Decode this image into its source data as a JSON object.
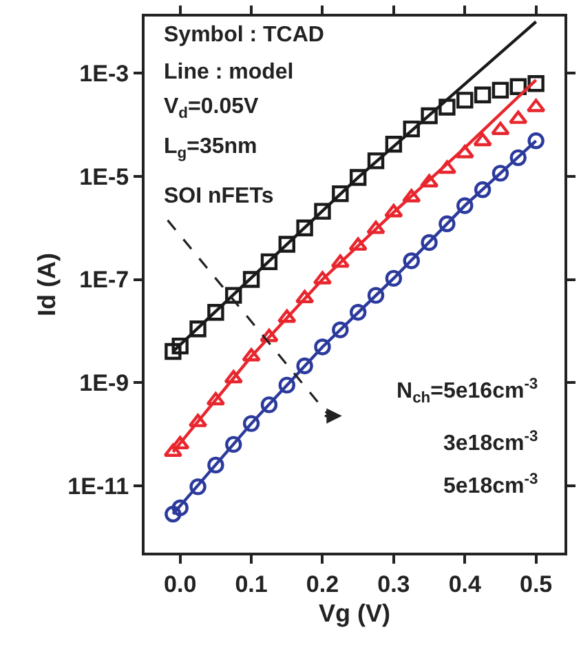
{
  "chart_data": {
    "type": "scatter",
    "xlabel": "Vg (V)",
    "ylabel": "Id (A)",
    "x": [
      -0.01,
      0,
      0.025,
      0.05,
      0.075,
      0.1,
      0.125,
      0.15,
      0.175,
      0.2,
      0.225,
      0.25,
      0.275,
      0.3,
      0.325,
      0.35,
      0.375,
      0.4,
      0.425,
      0.45,
      0.475,
      0.5
    ],
    "series": [
      {
        "marker": "square",
        "color": "#1a1a1a",
        "values": [
          4e-09,
          5.1e-09,
          1.1e-08,
          2.3e-08,
          4.9e-08,
          1e-07,
          2.2e-07,
          4.8e-07,
          1e-06,
          2.1e-06,
          4.6e-06,
          9.5e-06,
          2e-05,
          4.2e-05,
          8.3e-05,
          0.00015,
          0.00022,
          0.0003,
          0.00038,
          0.00047,
          0.00055,
          0.00063
        ]
      },
      {
        "marker": "triangle",
        "color": "#e8262e",
        "values": [
          4.5e-11,
          6.3e-11,
          1.7e-10,
          4.5e-10,
          1.2e-09,
          3.2e-09,
          7.6e-09,
          1.8e-08,
          4.3e-08,
          1e-07,
          2.1e-07,
          4.5e-07,
          9.5e-07,
          2e-06,
          3.9e-06,
          7.6e-06,
          1.4e-05,
          2.8e-05,
          4.8e-05,
          7.9e-05,
          0.00013,
          0.00022
        ]
      },
      {
        "marker": "circle",
        "color": "#2b3a9c",
        "values": [
          2.8e-12,
          3.7e-12,
          9.5e-12,
          2.5e-11,
          6.3e-11,
          1.6e-10,
          3.7e-10,
          8.9e-10,
          2.1e-09,
          4.9e-09,
          1.05e-08,
          2.3e-08,
          4.9e-08,
          1.05e-07,
          2.3e-07,
          5.2e-07,
          1.2e-06,
          2.7e-06,
          5.5e-06,
          1.15e-05,
          2.3e-05,
          4.9e-05
        ]
      },
      {
        "type": "line",
        "marker": "none",
        "color": "#1a1a1a",
        "x": [
          -0.01,
          0.25,
          0.5
        ],
        "values": [
          4e-09,
          9.5e-06,
          0.01
        ]
      },
      {
        "type": "line",
        "marker": "none",
        "color": "#e8262e",
        "x": [
          -0.01,
          0.1,
          0.2,
          0.3,
          0.4,
          0.5
        ],
        "values": [
          4.5e-11,
          3.2e-09,
          1e-07,
          2e-06,
          3.6e-05,
          0.00074
        ]
      },
      {
        "type": "line",
        "marker": "none",
        "color": "#2b3a9c",
        "x": [
          -0.01,
          0.1,
          0.2,
          0.3,
          0.4,
          0.5
        ],
        "values": [
          2.8e-12,
          1.6e-10,
          4.9e-09,
          1.05e-07,
          2.7e-06,
          4.9e-05
        ]
      }
    ],
    "xlim": [
      -0.05,
      0.54
    ],
    "xticks": [
      {
        "value": 0,
        "label": "0.0"
      },
      {
        "value": 0.1,
        "label": "0.1"
      },
      {
        "value": 0.2,
        "label": "0.2"
      },
      {
        "value": 0.3,
        "label": "0.3"
      },
      {
        "value": 0.4,
        "label": "0.4"
      },
      {
        "value": 0.5,
        "label": "0.5"
      }
    ],
    "ylim": [
      5e-13,
      0.0126
    ],
    "yticks": [
      {
        "value": 1e-11,
        "label": "1E-11"
      },
      {
        "value": 1e-09,
        "label": "1E-9"
      },
      {
        "value": 1e-07,
        "label": "1E-7"
      },
      {
        "value": 1e-05,
        "label": "1E-5"
      },
      {
        "value": 0.001,
        "label": "1E-3"
      }
    ],
    "log": "y",
    "annotations": [
      "Symbol : TCAD",
      "Line : model",
      "V$_{d}$=0.05V",
      "L$_{g}$=35nm",
      "SOI nFETs",
      "N$_{ch}$=5e16cm$^{-3}$",
      "3e18cm$^{-3}$",
      "5e18cm$^{-3}$"
    ]
  }
}
